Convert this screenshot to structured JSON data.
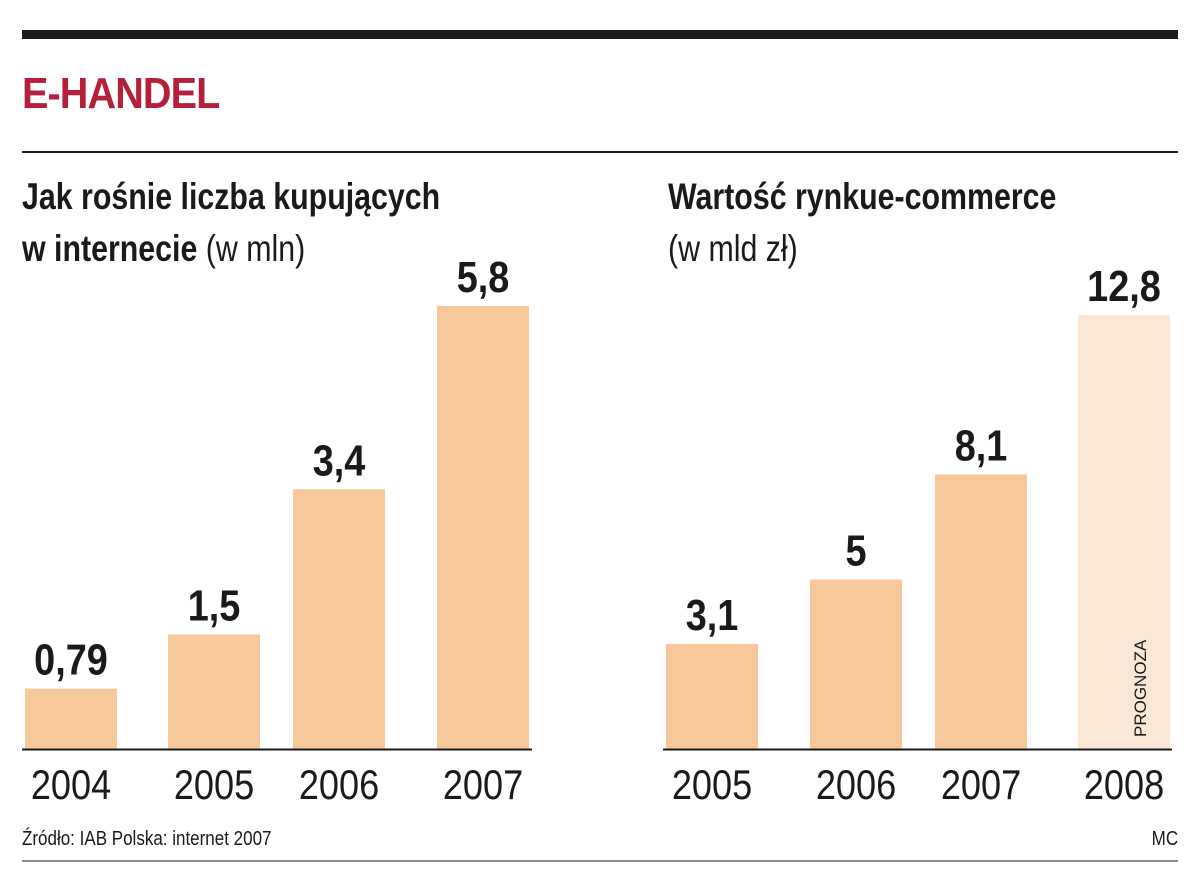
{
  "header": {
    "section_title": "E-HANDEL"
  },
  "colors": {
    "bar": "#f7c99a",
    "bar_forecast": "#fbe7d5",
    "title_accent": "#b51f3a",
    "text": "#1a1a1a"
  },
  "chart_data": [
    {
      "type": "bar",
      "title": "Jak rośnie liczba kupujących w internecie",
      "title_line1": "Jak rośnie liczba kupujących",
      "title_line2": "w internecie",
      "unit": "(w mln)",
      "categories": [
        "2004",
        "2005",
        "2006",
        "2007"
      ],
      "values": [
        0.79,
        1.5,
        3.4,
        5.8
      ],
      "value_labels": [
        "0,79",
        "1,5",
        "3,4",
        "5,8"
      ],
      "ylim": [
        0,
        5.8
      ],
      "grid": false,
      "legend": "none"
    },
    {
      "type": "bar",
      "title": "Wartość rynkue-commerce",
      "title_line1": "Wartość rynkue-commerce",
      "unit": "(w mld zł)",
      "categories": [
        "2005",
        "2006",
        "2007",
        "2008"
      ],
      "values": [
        3.1,
        5,
        8.1,
        12.8
      ],
      "value_labels": [
        "3,1",
        "5",
        "8,1",
        "12,8"
      ],
      "forecast_category": "2008",
      "forecast_label": "PROGNOZA",
      "ylim": [
        0,
        12.8
      ],
      "grid": false,
      "legend": "none"
    }
  ],
  "footer": {
    "source": "Źródło: IAB Polska: internet 2007",
    "credit": "MC"
  }
}
